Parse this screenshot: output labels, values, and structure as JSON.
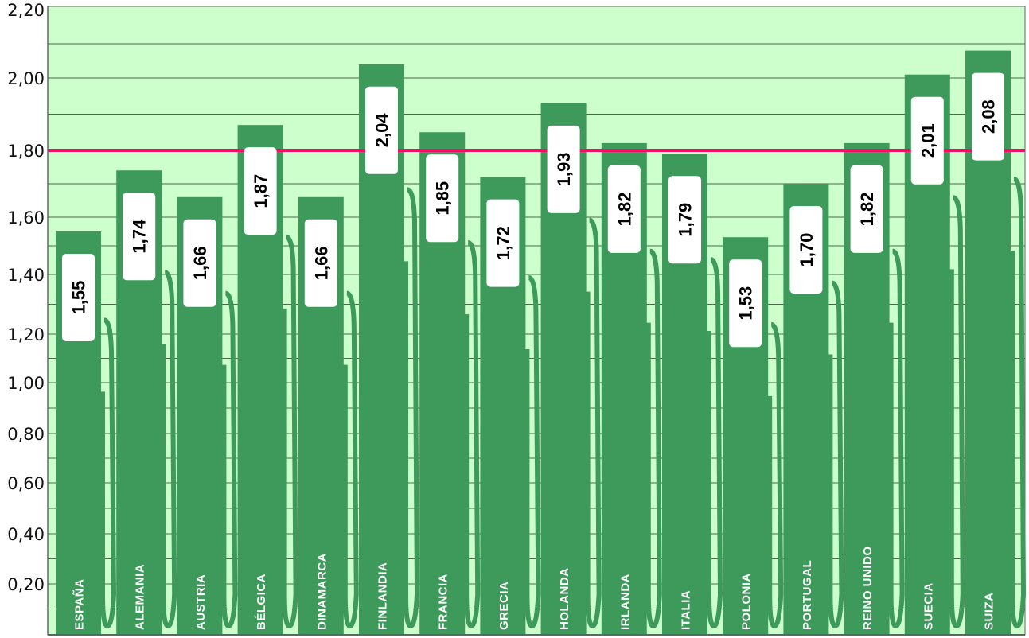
{
  "chart_data": {
    "type": "bar",
    "title": "",
    "xlabel": "",
    "ylabel": "",
    "categories": [
      "ESPAÑA",
      "ALEMANIA",
      "AUSTRIA",
      "BÉLGICA",
      "DINAMARCA",
      "FINLANDIA",
      "FRANCIA",
      "GRECIA",
      "HOLANDA",
      "IRLANDA",
      "ITALIA",
      "POLONIA",
      "PORTUGAL",
      "REINO UNIDO",
      "SUECIA",
      "SUIZA"
    ],
    "values": [
      1.55,
      1.74,
      1.66,
      1.87,
      1.66,
      2.04,
      1.85,
      1.72,
      1.93,
      1.82,
      1.79,
      1.53,
      1.7,
      1.82,
      2.01,
      2.08
    ],
    "value_labels": [
      "1,55",
      "1,74",
      "1,66",
      "1,87",
      "1,66",
      "2,04",
      "1,85",
      "1,72",
      "1,93",
      "1,82",
      "1,79",
      "1,53",
      "1,70",
      "1,82",
      "2,01",
      "2,08"
    ],
    "y_ticks": [
      0.2,
      0.4,
      0.6,
      0.8,
      1.0,
      1.2,
      1.4,
      1.6,
      1.8,
      2.0,
      2.2
    ],
    "y_tick_labels": [
      "0,20",
      "0,40",
      "0,60",
      "0,80",
      "1,00",
      "1,20",
      "1,40",
      "1,60",
      "1,80",
      "2,00",
      "2,20"
    ],
    "ylim": [
      0,
      2.2
    ],
    "reference_line": 1.8,
    "grid": true,
    "legend": "none",
    "colors": {
      "background": "#ccffcc",
      "bar": "#3d9a5a",
      "reference_line": "#ee1166",
      "grid": "#4a6a4a",
      "label_box": "#ffffff"
    }
  }
}
